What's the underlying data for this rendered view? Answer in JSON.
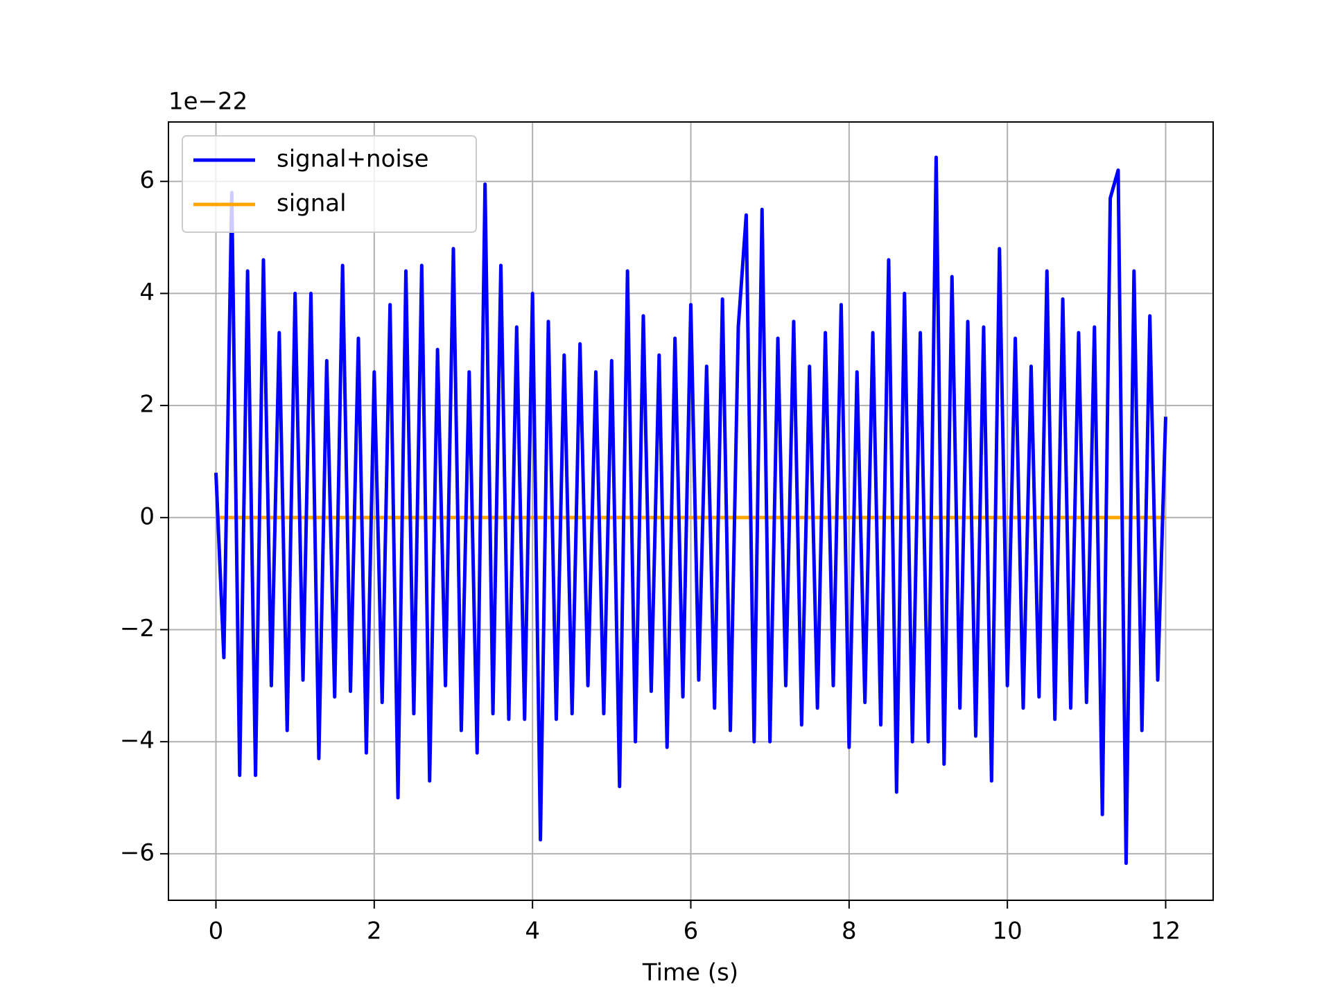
{
  "chart_data": {
    "type": "line",
    "x": [
      0,
      0.1,
      0.2,
      0.3,
      0.4,
      0.5,
      0.6,
      0.7,
      0.8,
      0.9,
      1,
      1.1,
      1.2,
      1.3,
      1.4,
      1.5,
      1.6,
      1.7,
      1.8,
      1.9,
      2,
      2.1,
      2.2,
      2.3,
      2.4,
      2.5,
      2.6,
      2.7,
      2.8,
      2.9,
      3,
      3.1,
      3.2,
      3.3,
      3.4,
      3.5,
      3.6,
      3.7,
      3.8,
      3.9,
      4,
      4.1,
      4.2,
      4.3,
      4.4,
      4.5,
      4.6,
      4.7,
      4.8,
      4.9,
      5,
      5.1,
      5.2,
      5.3,
      5.4,
      5.5,
      5.6,
      5.7,
      5.8,
      5.9,
      6,
      6.1,
      6.2,
      6.3,
      6.4,
      6.5,
      6.6,
      6.7,
      6.8,
      6.9,
      7,
      7.1,
      7.2,
      7.3,
      7.4,
      7.5,
      7.6,
      7.7,
      7.8,
      7.9,
      8,
      8.1,
      8.2,
      8.3,
      8.4,
      8.5,
      8.6,
      8.7,
      8.8,
      8.9,
      9,
      9.1,
      9.2,
      9.3,
      9.4,
      9.5,
      9.6,
      9.7,
      9.8,
      9.9,
      10,
      10.1,
      10.2,
      10.3,
      10.4,
      10.5,
      10.6,
      10.7,
      10.8,
      10.9,
      11,
      11.1,
      11.2,
      11.3,
      11.4,
      11.5,
      11.6,
      11.7,
      11.8,
      11.9,
      12
    ],
    "series": [
      {
        "name": "signal+noise",
        "color": "#0000ff",
        "values": [
          0.8,
          -2.5,
          5.8,
          -4.6,
          4.4,
          -4.6,
          4.6,
          -3.0,
          3.3,
          -3.8,
          4.0,
          -2.9,
          4.0,
          -4.3,
          2.8,
          -3.2,
          4.5,
          -3.1,
          3.2,
          -4.2,
          2.6,
          -3.3,
          3.8,
          -5.0,
          4.4,
          -3.5,
          4.5,
          -4.7,
          3.0,
          -3.0,
          4.8,
          -3.8,
          2.6,
          -4.2,
          5.95,
          -3.5,
          4.5,
          -3.6,
          3.4,
          -3.6,
          4.0,
          -5.75,
          3.5,
          -3.6,
          2.9,
          -3.5,
          3.1,
          -3.0,
          2.6,
          -3.5,
          2.8,
          -4.8,
          4.4,
          -4.0,
          3.6,
          -3.1,
          2.9,
          -4.1,
          3.2,
          -3.2,
          3.8,
          -2.9,
          2.7,
          -3.4,
          3.9,
          -3.8,
          3.4,
          5.4,
          -4.0,
          5.5,
          -4.0,
          3.2,
          -3.0,
          3.5,
          -3.7,
          2.7,
          -3.4,
          3.3,
          -3.0,
          3.8,
          -4.1,
          2.6,
          -3.3,
          3.3,
          -3.7,
          4.6,
          -4.9,
          4.0,
          -4.0,
          3.3,
          -4.0,
          6.43,
          -4.4,
          4.3,
          -3.4,
          3.5,
          -3.9,
          3.4,
          -4.7,
          4.8,
          -3.0,
          3.2,
          -3.4,
          2.7,
          -3.2,
          4.4,
          -3.6,
          3.9,
          -3.4,
          3.3,
          -3.3,
          3.4,
          -5.3,
          5.7,
          6.2,
          -6.17,
          4.4,
          -3.8,
          3.6,
          -2.9,
          1.8
        ]
      },
      {
        "name": "signal",
        "color": "#ffa500",
        "values": [
          0,
          0,
          0,
          0,
          0,
          0,
          0,
          0,
          0,
          0,
          0,
          0,
          0,
          0,
          0,
          0,
          0,
          0,
          0,
          0,
          0,
          0,
          0,
          0,
          0,
          0,
          0,
          0,
          0,
          0,
          0,
          0,
          0,
          0,
          0,
          0,
          0,
          0,
          0,
          0,
          0,
          0,
          0,
          0,
          0,
          0,
          0,
          0,
          0,
          0,
          0,
          0,
          0,
          0,
          0,
          0,
          0,
          0,
          0,
          0,
          0,
          0,
          0,
          0,
          0,
          0,
          0,
          0,
          0,
          0,
          0,
          0,
          0,
          0,
          0,
          0,
          0,
          0,
          0,
          0,
          0,
          0,
          0,
          0,
          0,
          0,
          0,
          0,
          0,
          0,
          0,
          0,
          0,
          0,
          0,
          0,
          0,
          0,
          0,
          0,
          0,
          0,
          0,
          0,
          0,
          0,
          0,
          0,
          0,
          0,
          0,
          0,
          0,
          0,
          0,
          0,
          0,
          0,
          0,
          0,
          0
        ]
      }
    ],
    "xlabel": "Time (s)",
    "y_offset_label": "1e−22",
    "xlim": [
      -0.6,
      12.6
    ],
    "ylim": [
      -6.83,
      7.06
    ],
    "xticks": [
      0,
      2,
      4,
      6,
      8,
      10,
      12
    ],
    "yticks": [
      {
        "value": -6,
        "label": "−6"
      },
      {
        "value": -4,
        "label": "−4"
      },
      {
        "value": -2,
        "label": "−2"
      },
      0,
      2,
      4,
      6
    ],
    "grid": true,
    "legend": "upper left"
  }
}
